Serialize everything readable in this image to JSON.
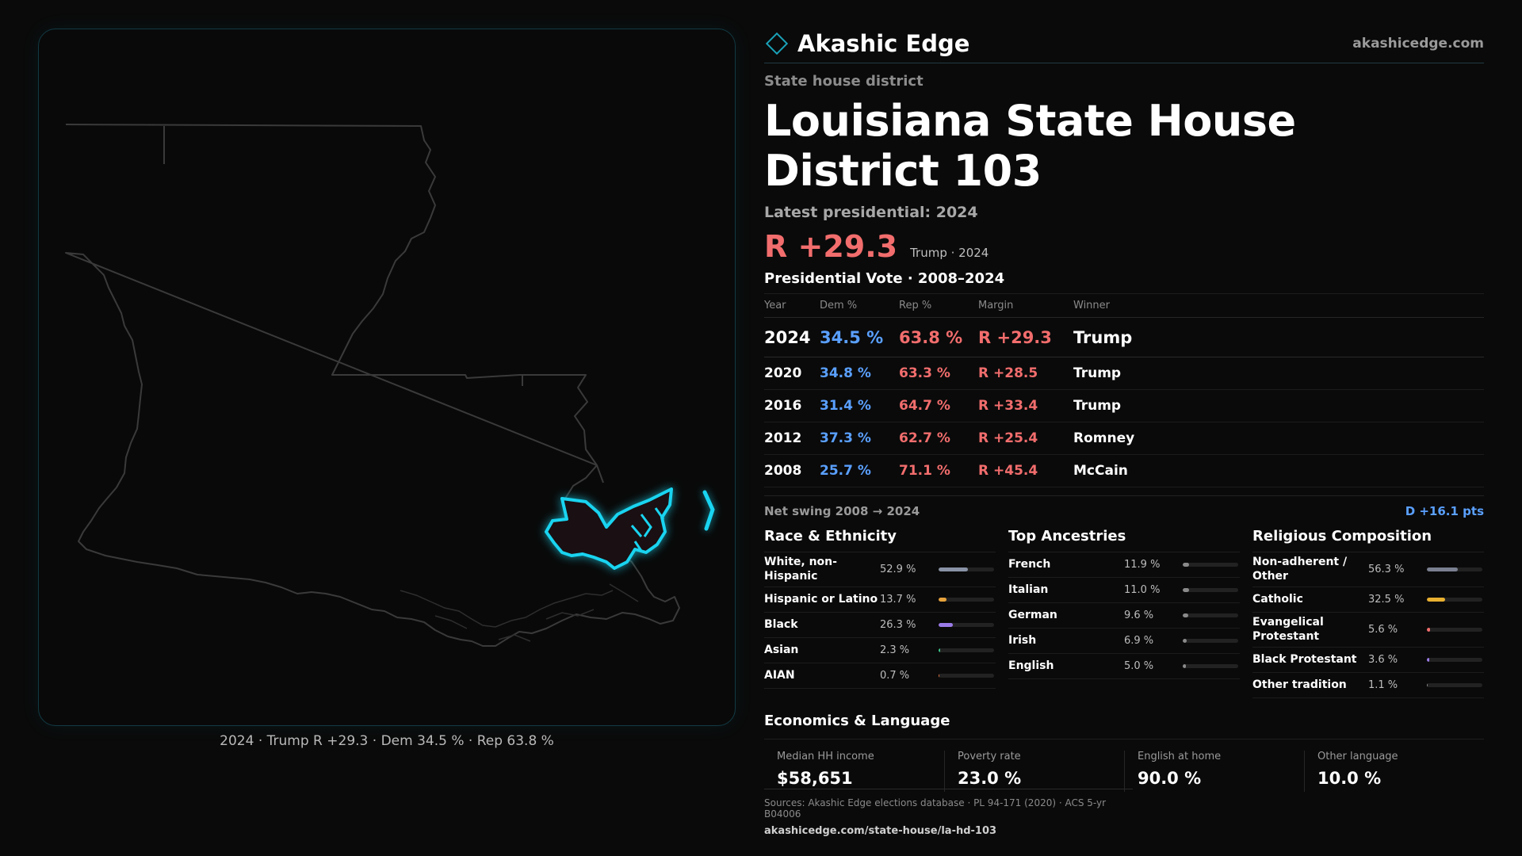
{
  "brand": {
    "name": "Akashic Edge",
    "url": "akashicedge.com",
    "accent": "#1aa2b8"
  },
  "header": {
    "kicker": "State house district",
    "title": "Louisiana State House District 103",
    "latest_label": "Latest presidential: 2024",
    "margin": "R +29.3",
    "margin_note": "Trump · 2024"
  },
  "colors": {
    "dem": "#5aa0ff",
    "rep": "#f26d6d",
    "highlight": "#19d4f0"
  },
  "presidential": {
    "title": "Presidential Vote · 2008–2024",
    "headers": {
      "year": "Year",
      "dem": "Dem %",
      "rep": "Rep %",
      "margin": "Margin",
      "winner": "Winner"
    },
    "rows": [
      {
        "year": "2024",
        "dem": "34.5 %",
        "rep": "63.8 %",
        "margin": "R +29.3",
        "winner": "Trump"
      },
      {
        "year": "2020",
        "dem": "34.8 %",
        "rep": "63.3 %",
        "margin": "R +28.5",
        "winner": "Trump"
      },
      {
        "year": "2016",
        "dem": "31.4 %",
        "rep": "64.7 %",
        "margin": "R +33.4",
        "winner": "Trump"
      },
      {
        "year": "2012",
        "dem": "37.3 %",
        "rep": "62.7 %",
        "margin": "R +25.4",
        "winner": "Romney"
      },
      {
        "year": "2008",
        "dem": "25.7 %",
        "rep": "71.1 %",
        "margin": "R +45.4",
        "winner": "McCain"
      }
    ],
    "swing_label": "Net swing 2008 → 2024",
    "swing_value": "D +16.1 pts"
  },
  "race": {
    "title": "Race & Ethnicity",
    "items": [
      {
        "label": "White, non-Hispanic",
        "value": "52.9 %",
        "pct": 52.9,
        "color": "#8a93a6"
      },
      {
        "label": "Hispanic or Latino",
        "value": "13.7 %",
        "pct": 13.7,
        "color": "#e6a23c"
      },
      {
        "label": "Black",
        "value": "26.3 %",
        "pct": 26.3,
        "color": "#9b7be8"
      },
      {
        "label": "Asian",
        "value": "2.3 %",
        "pct": 2.3,
        "color": "#3cc48a"
      },
      {
        "label": "AIAN",
        "value": "0.7 %",
        "pct": 0.7,
        "color": "#e0703c"
      }
    ]
  },
  "ancestry": {
    "title": "Top Ancestries",
    "items": [
      {
        "label": "French",
        "value": "11.9 %",
        "pct": 11.9,
        "color": "#8a8a8a"
      },
      {
        "label": "Italian",
        "value": "11.0 %",
        "pct": 11.0,
        "color": "#8a8a8a"
      },
      {
        "label": "German",
        "value": "9.6 %",
        "pct": 9.6,
        "color": "#8a8a8a"
      },
      {
        "label": "Irish",
        "value": "6.9 %",
        "pct": 6.9,
        "color": "#8a8a8a"
      },
      {
        "label": "English",
        "value": "5.0 %",
        "pct": 5.0,
        "color": "#8a8a8a"
      }
    ]
  },
  "religion": {
    "title": "Religious Composition",
    "items": [
      {
        "label": "Non-adherent / Other",
        "value": "56.3 %",
        "pct": 56.3,
        "color": "#7a8090"
      },
      {
        "label": "Catholic",
        "value": "32.5 %",
        "pct": 32.5,
        "color": "#e8b030"
      },
      {
        "label": "Evangelical Protestant",
        "value": "5.6 %",
        "pct": 5.6,
        "color": "#f26d6d"
      },
      {
        "label": "Black Protestant",
        "value": "3.6 %",
        "pct": 3.6,
        "color": "#9b7be8"
      },
      {
        "label": "Other tradition",
        "value": "1.1 %",
        "pct": 1.1,
        "color": "#8a8a8a"
      }
    ]
  },
  "economics": {
    "title": "Economics & Language",
    "items": [
      {
        "label": "Median HH income",
        "value": "$58,651"
      },
      {
        "label": "Poverty rate",
        "value": "23.0 %"
      },
      {
        "label": "English at home",
        "value": "90.0 %"
      },
      {
        "label": "Other language",
        "value": "10.0 %"
      }
    ]
  },
  "map": {
    "caption": "2024 · Trump R +29.3 · Dem 34.5 % · Rep 63.8 %"
  },
  "sources": {
    "line": "Sources: Akashic Edge elections database · PL 94-171 (2020) · ACS 5-yr B04006",
    "url": "akashicedge.com/state-house/la-hd-103"
  }
}
